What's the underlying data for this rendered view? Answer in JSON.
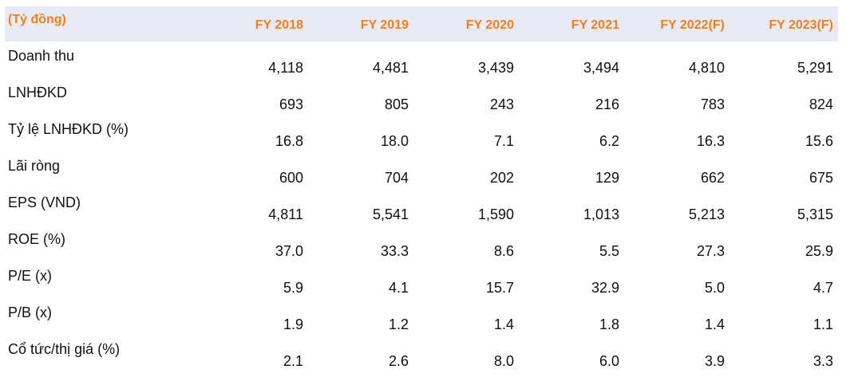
{
  "table": {
    "unit_label": "(Tỷ đồng)",
    "columns": [
      "FY 2018",
      "FY 2019",
      "FY 2020",
      "FY 2021",
      "FY 2022(F)",
      "FY 2023(F)"
    ],
    "rows": [
      {
        "label": "Doanh thu",
        "values": [
          "4,118",
          "4,481",
          "3,439",
          "3,494",
          "4,810",
          "5,291"
        ]
      },
      {
        "label": "LNHĐKD",
        "values": [
          "693",
          "805",
          "243",
          "216",
          "783",
          "824"
        ]
      },
      {
        "label": "Tỷ lệ LNHĐKD (%)",
        "values": [
          "16.8",
          "18.0",
          "7.1",
          "6.2",
          "16.3",
          "15.6"
        ]
      },
      {
        "label": "Lãi ròng",
        "values": [
          "600",
          "704",
          "202",
          "129",
          "662",
          "675"
        ]
      },
      {
        "label": "EPS (VND)",
        "values": [
          "4,811",
          "5,541",
          "1,590",
          "1,013",
          "5,213",
          "5,315"
        ]
      },
      {
        "label": "ROE (%)",
        "values": [
          "37.0",
          "33.3",
          "8.6",
          "5.5",
          "27.3",
          "25.9"
        ]
      },
      {
        "label": "P/E (x)",
        "values": [
          "5.9",
          "4.1",
          "15.7",
          "32.9",
          "5.0",
          "4.7"
        ]
      },
      {
        "label": "P/B (x)",
        "values": [
          "1.9",
          "1.2",
          "1.4",
          "1.8",
          "1.4",
          "1.1"
        ]
      },
      {
        "label": "Cổ tức/thị giá (%)",
        "values": [
          "2.1",
          "2.6",
          "8.0",
          "6.0",
          "3.9",
          "3.3"
        ]
      }
    ]
  }
}
